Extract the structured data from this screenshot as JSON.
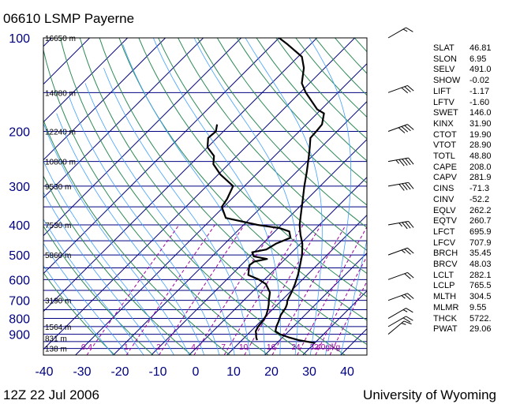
{
  "header": {
    "title": "06610 LSMP Payerne"
  },
  "footer": {
    "time": "12Z 22 Jul 2006",
    "source": "University of Wyoming"
  },
  "colors": {
    "pressure_lines": "#000080",
    "temp_lines": "#000080",
    "dry_adiabats": "#2e8b57",
    "moist_adiabats": "#40a0ff",
    "mixing_ratio": "#a000a0",
    "axis_text": "#000080",
    "profile": "#000000"
  },
  "chart_data": {
    "type": "line",
    "title": "06610 LSMP Payerne",
    "y_scale": "log-pressure",
    "ylim": [
      100,
      1050
    ],
    "xlim": [
      -40,
      45
    ],
    "pressure_ticks": [
      {
        "p": 100,
        "label": "100"
      },
      {
        "p": 200,
        "label": "200"
      },
      {
        "p": 300,
        "label": "300"
      },
      {
        "p": 400,
        "label": "400"
      },
      {
        "p": 500,
        "label": "500"
      },
      {
        "p": 600,
        "label": "600"
      },
      {
        "p": 700,
        "label": "700"
      },
      {
        "p": 800,
        "label": "800"
      },
      {
        "p": 900,
        "label": "900"
      }
    ],
    "temperature_ticks": [
      {
        "t": -40,
        "label": "-40"
      },
      {
        "t": -30,
        "label": "-30"
      },
      {
        "t": -20,
        "label": "-20"
      },
      {
        "t": -10,
        "label": "-10"
      },
      {
        "t": 0,
        "label": "0"
      },
      {
        "t": 10,
        "label": "10"
      },
      {
        "t": 20,
        "label": "20"
      },
      {
        "t": 30,
        "label": "30"
      },
      {
        "t": 40,
        "label": "40"
      }
    ],
    "height_labels": [
      {
        "p": 100,
        "label": "16650 m"
      },
      {
        "p": 150,
        "label": "14080 m"
      },
      {
        "p": 200,
        "label": "12240 m"
      },
      {
        "p": 250,
        "label": "10800 m"
      },
      {
        "p": 300,
        "label": "9530 m"
      },
      {
        "p": 400,
        "label": "7530 m"
      },
      {
        "p": 500,
        "label": "5860 m"
      },
      {
        "p": 700,
        "label": "3190 m"
      },
      {
        "p": 850,
        "label": "1564 m"
      },
      {
        "p": 925,
        "label": "831 m"
      },
      {
        "p": 1000,
        "label": "138 m"
      }
    ],
    "mixing_ratio_labels": [
      "0.4",
      "1",
      "2",
      "4",
      "7",
      "10",
      "16",
      "24",
      "32",
      "40g/kg"
    ],
    "series": [
      {
        "role": "temperature",
        "points": [
          [
            960,
            30
          ],
          [
            940,
            25
          ],
          [
            920,
            21.5
          ],
          [
            900,
            18.5
          ],
          [
            880,
            16.5
          ],
          [
            850,
            15.5
          ],
          [
            820,
            14.8
          ],
          [
            800,
            14.2
          ],
          [
            780,
            13.6
          ],
          [
            740,
            13
          ],
          [
            720,
            12.4
          ],
          [
            700,
            11.5
          ],
          [
            660,
            10.5
          ],
          [
            620,
            9.2
          ],
          [
            580,
            7.6
          ],
          [
            540,
            5.6
          ],
          [
            500,
            3.4
          ],
          [
            460,
            0.5
          ],
          [
            430,
            -2.4
          ],
          [
            400,
            -5.2
          ],
          [
            360,
            -8.5
          ],
          [
            330,
            -11.2
          ],
          [
            300,
            -14.2
          ],
          [
            270,
            -17.3
          ],
          [
            245,
            -20.3
          ],
          [
            225,
            -23
          ],
          [
            210,
            -25.3
          ],
          [
            200,
            -25.5
          ],
          [
            190,
            -25.8
          ],
          [
            175,
            -28.2
          ],
          [
            170,
            -31
          ],
          [
            150,
            -38.5
          ],
          [
            140,
            -42
          ],
          [
            125,
            -45.5
          ],
          [
            115,
            -49
          ],
          [
            105,
            -56
          ],
          [
            100,
            -60
          ]
        ]
      },
      {
        "role": "dewpoint",
        "points": [
          [
            940,
            14
          ],
          [
            920,
            13
          ],
          [
            900,
            12.2
          ],
          [
            880,
            11.3
          ],
          [
            850,
            10.7
          ],
          [
            820,
            10.5
          ],
          [
            800,
            10.2
          ],
          [
            780,
            9.8
          ],
          [
            750,
            8.8
          ],
          [
            720,
            7.6
          ],
          [
            700,
            6.6
          ],
          [
            660,
            4.8
          ],
          [
            620,
            1.5
          ],
          [
            600,
            -1.5
          ],
          [
            580,
            -5.5
          ],
          [
            540,
            -7.8
          ],
          [
            525,
            -7.5
          ],
          [
            515,
            -4.8
          ],
          [
            505,
            -9
          ],
          [
            490,
            -10.5
          ],
          [
            480,
            -7.5
          ],
          [
            460,
            -6.5
          ],
          [
            440,
            -4.2
          ],
          [
            420,
            -6.2
          ],
          [
            410,
            -9.5
          ],
          [
            400,
            -16.3
          ],
          [
            380,
            -26.5
          ],
          [
            350,
            -30.5
          ],
          [
            330,
            -31.2
          ],
          [
            300,
            -33
          ],
          [
            275,
            -39.5
          ],
          [
            255,
            -44
          ],
          [
            240,
            -46
          ],
          [
            225,
            -50
          ],
          [
            210,
            -52.3
          ],
          [
            200,
            -52
          ],
          [
            190,
            -53.5
          ]
        ]
      }
    ],
    "wind_barbs": [
      {
        "p": 900,
        "dir": 230,
        "spd": 15
      },
      {
        "p": 850,
        "dir": 240,
        "spd": 20
      },
      {
        "p": 800,
        "dir": 240,
        "spd": 15
      },
      {
        "p": 700,
        "dir": 250,
        "spd": 25
      },
      {
        "p": 600,
        "dir": 250,
        "spd": 20
      },
      {
        "p": 500,
        "dir": 250,
        "spd": 25
      },
      {
        "p": 400,
        "dir": 260,
        "spd": 35
      },
      {
        "p": 300,
        "dir": 260,
        "spd": 40
      },
      {
        "p": 250,
        "dir": 260,
        "spd": 45
      },
      {
        "p": 200,
        "dir": 250,
        "spd": 40
      },
      {
        "p": 150,
        "dir": 250,
        "spd": 30
      },
      {
        "p": 100,
        "dir": 240,
        "spd": 15
      }
    ]
  },
  "stations": {
    "indices": [
      {
        "name": "SLAT",
        "value": "46.81"
      },
      {
        "name": "SLON",
        "value": "6.95"
      },
      {
        "name": "SELV",
        "value": "491.0"
      },
      {
        "name": "SHOW",
        "value": "-0.02"
      },
      {
        "name": "LIFT",
        "value": "-1.17"
      },
      {
        "name": "LFTV",
        "value": "-1.60"
      },
      {
        "name": "SWET",
        "value": "146.0"
      },
      {
        "name": "KINX",
        "value": "31.90"
      },
      {
        "name": "CTOT",
        "value": "19.90"
      },
      {
        "name": "VTOT",
        "value": "28.90"
      },
      {
        "name": "TOTL",
        "value": "48.80"
      },
      {
        "name": "CAPE",
        "value": "208.0"
      },
      {
        "name": "CAPV",
        "value": "281.9"
      },
      {
        "name": "CINS",
        "value": "-71.3"
      },
      {
        "name": "CINV",
        "value": "-52.2"
      },
      {
        "name": "EQLV",
        "value": "262.2"
      },
      {
        "name": "EQTV",
        "value": "260.7"
      },
      {
        "name": "LFCT",
        "value": "695.9"
      },
      {
        "name": "LFCV",
        "value": "707.9"
      },
      {
        "name": "BRCH",
        "value": "35.45"
      },
      {
        "name": "BRCV",
        "value": "48.03"
      },
      {
        "name": "LCLT",
        "value": "282.1"
      },
      {
        "name": "LCLP",
        "value": "765.5"
      },
      {
        "name": "MLTH",
        "value": "304.5"
      },
      {
        "name": "MLMR",
        "value": "9.55"
      },
      {
        "name": "THCK",
        "value": "5722."
      },
      {
        "name": "PWAT",
        "value": "29.06"
      }
    ]
  }
}
